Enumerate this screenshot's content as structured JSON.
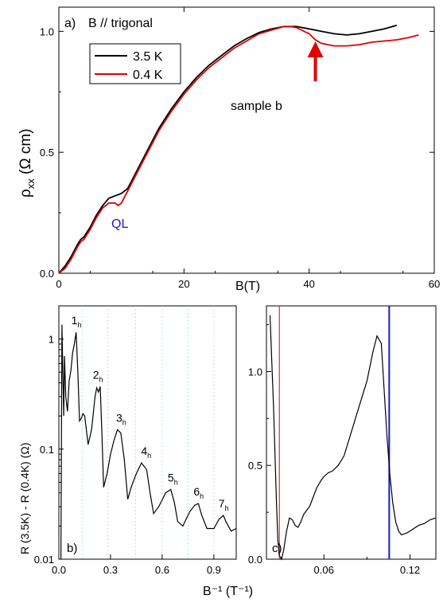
{
  "chart_data": [
    {
      "panel": "a)",
      "type": "line",
      "annotation_field": "B // trigonal",
      "annotation_sample": "sample b",
      "annotation_ql": "QL",
      "xlabel": "B(T)",
      "ylabel_main": "ρ",
      "ylabel_sub": "xx",
      "ylabel_unit": " (Ω cm)",
      "xlim": [
        0,
        60
      ],
      "ylim": [
        0,
        1.1
      ],
      "xticks": [
        0,
        20,
        40,
        60
      ],
      "yticks": [
        0.0,
        0.5,
        1.0
      ],
      "ytick_labels": [
        "0.0",
        "0.5",
        "1.0"
      ],
      "legend": "top-left",
      "arrow_at_x": 41,
      "colors": {
        "s1": "#000000",
        "s2": "#e00000",
        "ql": "#1a1acc",
        "arrow": "#e00000"
      },
      "series": [
        {
          "name": "3.5 K",
          "color": "#000000",
          "x": [
            0,
            1,
            2,
            3,
            3.5,
            4,
            5,
            6,
            7,
            8,
            9,
            10,
            11,
            12,
            14,
            16,
            18,
            20,
            22,
            24,
            26,
            28,
            30,
            32,
            34,
            36,
            37,
            38,
            40,
            42,
            44,
            46,
            48,
            50,
            52,
            54
          ],
          "y": [
            0,
            0.03,
            0.07,
            0.12,
            0.14,
            0.15,
            0.19,
            0.24,
            0.28,
            0.31,
            0.32,
            0.33,
            0.35,
            0.4,
            0.5,
            0.6,
            0.68,
            0.75,
            0.81,
            0.86,
            0.9,
            0.94,
            0.97,
            0.995,
            1.01,
            1.02,
            1.02,
            1.02,
            1.01,
            1.0,
            0.99,
            0.985,
            0.99,
            1.0,
            1.01,
            1.025
          ]
        },
        {
          "name": "0.4 K",
          "color": "#e00000",
          "x": [
            0,
            1,
            2,
            3,
            3.5,
            4,
            5,
            6,
            7,
            8,
            9,
            9.5,
            10,
            11,
            12,
            14,
            16,
            18,
            20,
            22,
            24,
            26,
            28,
            30,
            32,
            34,
            36,
            37,
            38,
            40,
            41,
            42,
            44,
            46,
            48,
            50,
            52,
            54,
            56,
            57.5
          ],
          "y": [
            0,
            0.02,
            0.06,
            0.11,
            0.13,
            0.14,
            0.18,
            0.23,
            0.27,
            0.29,
            0.29,
            0.28,
            0.29,
            0.34,
            0.39,
            0.49,
            0.59,
            0.67,
            0.74,
            0.8,
            0.85,
            0.89,
            0.93,
            0.96,
            0.99,
            1.005,
            1.02,
            1.02,
            1.015,
            0.99,
            0.965,
            0.95,
            0.94,
            0.94,
            0.945,
            0.955,
            0.96,
            0.965,
            0.975,
            0.985
          ]
        }
      ]
    },
    {
      "panel": "b)",
      "type": "line",
      "xlabel": "B⁻¹ (T⁻¹)",
      "ylabel": "R (3.5K) - R (0.4K)  (Ω)",
      "ylog": true,
      "xlim": [
        0,
        1.03
      ],
      "ylim": [
        0.01,
        2
      ],
      "xticks": [
        0.0,
        0.3,
        0.6,
        0.9
      ],
      "xtick_labels": [
        "0.0",
        "0.3",
        "0.6",
        "0.9"
      ],
      "yticks": [
        0.01,
        0.1,
        1
      ],
      "ytick_labels": [
        "0.01",
        "0.1",
        "1"
      ],
      "grid_x": [
        0.135,
        0.285,
        0.445,
        0.6,
        0.75,
        0.9
      ],
      "peaks": [
        {
          "n": "1",
          "sub": "h",
          "x": 0.1,
          "y": 1.15
        },
        {
          "n": "2",
          "sub": "h",
          "x": 0.225,
          "y": 0.37
        },
        {
          "n": "3",
          "sub": "h",
          "x": 0.36,
          "y": 0.15
        },
        {
          "n": "4",
          "sub": "h",
          "x": 0.505,
          "y": 0.075
        },
        {
          "n": "5",
          "sub": "h",
          "x": 0.66,
          "y": 0.043
        },
        {
          "n": "6",
          "sub": "h",
          "x": 0.81,
          "y": 0.032
        },
        {
          "n": "7",
          "sub": "h",
          "x": 0.955,
          "y": 0.025
        }
      ],
      "series": [
        {
          "color": "#000000",
          "x": [
            0.012,
            0.018,
            0.023,
            0.028,
            0.033,
            0.04,
            0.05,
            0.06,
            0.07,
            0.08,
            0.09,
            0.1,
            0.11,
            0.12,
            0.13,
            0.14,
            0.15,
            0.17,
            0.19,
            0.21,
            0.22,
            0.23,
            0.24,
            0.25,
            0.26,
            0.28,
            0.3,
            0.32,
            0.34,
            0.36,
            0.38,
            0.4,
            0.42,
            0.45,
            0.48,
            0.51,
            0.53,
            0.55,
            0.58,
            0.62,
            0.65,
            0.67,
            0.69,
            0.72,
            0.76,
            0.79,
            0.81,
            0.83,
            0.86,
            0.9,
            0.93,
            0.955,
            0.97,
            1.0,
            1.03
          ],
          "y": [
            0.01,
            1.35,
            0.5,
            0.2,
            0.7,
            0.3,
            0.22,
            0.42,
            0.52,
            0.75,
            0.9,
            1.15,
            0.52,
            0.18,
            0.19,
            0.21,
            0.2,
            0.11,
            0.15,
            0.3,
            0.36,
            0.33,
            0.37,
            0.14,
            0.045,
            0.06,
            0.09,
            0.12,
            0.15,
            0.14,
            0.08,
            0.035,
            0.045,
            0.06,
            0.075,
            0.065,
            0.04,
            0.026,
            0.03,
            0.04,
            0.043,
            0.033,
            0.022,
            0.02,
            0.027,
            0.031,
            0.032,
            0.025,
            0.019,
            0.019,
            0.023,
            0.025,
            0.022,
            0.018,
            0.019
          ]
        }
      ]
    },
    {
      "panel": "c)",
      "type": "line",
      "xlim": [
        0.02,
        0.138
      ],
      "ylim": [
        0,
        1.35
      ],
      "xticks": [
        0.06,
        0.12
      ],
      "xtick_labels": [
        "0.06",
        "0.12"
      ],
      "yticks": [
        0.0,
        0.5,
        1.0
      ],
      "ytick_labels": [
        "0.0",
        "0.5",
        "1.0"
      ],
      "vlines": [
        {
          "x": 0.029,
          "color": "#c0392b"
        },
        {
          "x": 0.1055,
          "color": "#1a1acc"
        }
      ],
      "series": [
        {
          "color": "#000000",
          "x": [
            0.0225,
            0.023,
            0.024,
            0.025,
            0.026,
            0.027,
            0.028,
            0.029,
            0.0305,
            0.032,
            0.034,
            0.036,
            0.038,
            0.04,
            0.042,
            0.044,
            0.046,
            0.048,
            0.05,
            0.052,
            0.055,
            0.058,
            0.06,
            0.063,
            0.066,
            0.07,
            0.074,
            0.078,
            0.082,
            0.086,
            0.09,
            0.094,
            0.097,
            0.1,
            0.102,
            0.104,
            0.106,
            0.108,
            0.11,
            0.112,
            0.114,
            0.118,
            0.122,
            0.126,
            0.13,
            0.134,
            0.138
          ],
          "y": [
            1.3,
            1.2,
            1.0,
            0.8,
            0.55,
            0.3,
            0.1,
            0.02,
            0.0,
            0.05,
            0.15,
            0.22,
            0.21,
            0.18,
            0.17,
            0.2,
            0.24,
            0.26,
            0.28,
            0.32,
            0.38,
            0.42,
            0.44,
            0.46,
            0.47,
            0.5,
            0.55,
            0.65,
            0.75,
            0.85,
            0.95,
            1.1,
            1.19,
            1.15,
            0.9,
            0.65,
            0.45,
            0.3,
            0.2,
            0.15,
            0.13,
            0.14,
            0.16,
            0.18,
            0.19,
            0.21,
            0.22
          ]
        }
      ]
    }
  ]
}
